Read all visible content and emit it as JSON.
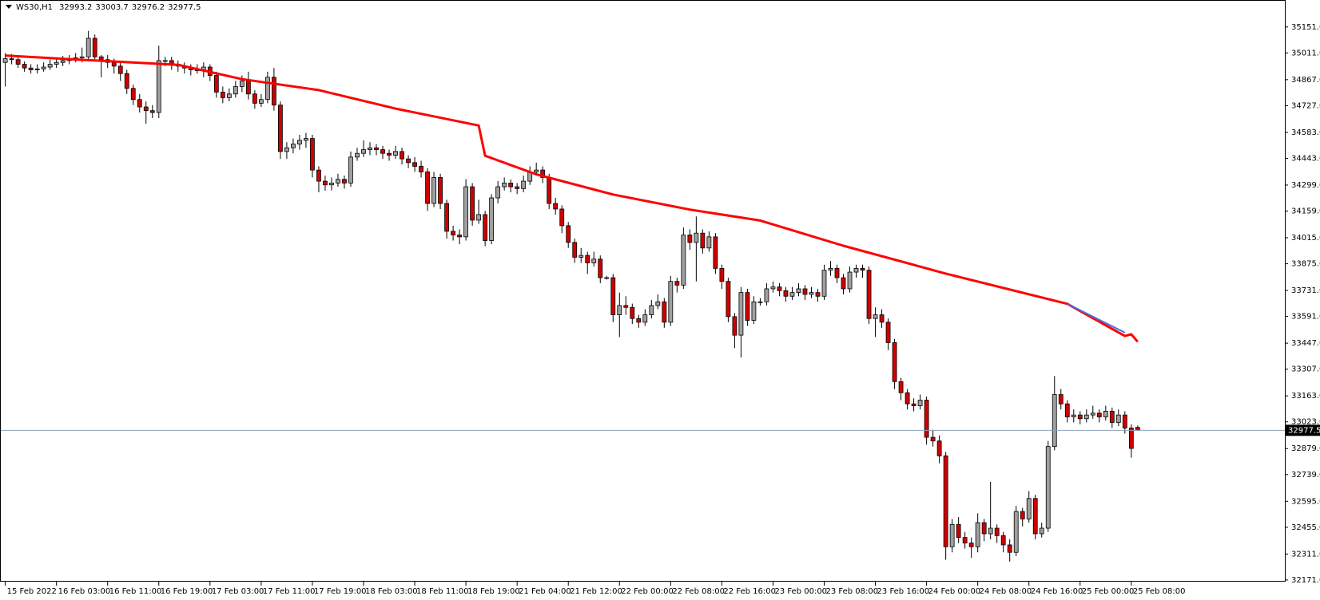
{
  "chart_data": {
    "type": "candlestick",
    "header": {
      "symbol": "WS30,H1",
      "quote": [
        32993.2,
        33003.7,
        32976.2,
        32977.5
      ]
    },
    "xlim": [
      -0.7,
      200
    ],
    "ylim": [
      32162,
      35292
    ],
    "xticks": [
      {
        "value": 0,
        "label": "15 Feb 2022"
      },
      {
        "value": 8,
        "label": "16 Feb 03:00"
      },
      {
        "value": 16,
        "label": "16 Feb 11:00"
      },
      {
        "value": 24,
        "label": "16 Feb 19:00"
      },
      {
        "value": 32,
        "label": "17 Feb 03:00"
      },
      {
        "value": 40,
        "label": "17 Feb 11:00"
      },
      {
        "value": 48,
        "label": "17 Feb 19:00"
      },
      {
        "value": 56,
        "label": "18 Feb 03:00"
      },
      {
        "value": 64,
        "label": "18 Feb 11:00"
      },
      {
        "value": 72,
        "label": "18 Feb 19:00"
      },
      {
        "value": 80,
        "label": "21 Feb 04:00"
      },
      {
        "value": 88,
        "label": "21 Feb 12:00"
      },
      {
        "value": 96,
        "label": "22 Feb 00:00"
      },
      {
        "value": 104,
        "label": "22 Feb 08:00"
      },
      {
        "value": 112,
        "label": "22 Feb 16:00"
      },
      {
        "value": 120,
        "label": "23 Feb 00:00"
      },
      {
        "value": 128,
        "label": "23 Feb 08:00"
      },
      {
        "value": 136,
        "label": "23 Feb 16:00"
      },
      {
        "value": 144,
        "label": "24 Feb 00:00"
      },
      {
        "value": 152,
        "label": "24 Feb 08:00"
      },
      {
        "value": 160,
        "label": "24 Feb 16:00"
      },
      {
        "value": 168,
        "label": "25 Feb 00:00"
      },
      {
        "value": 176,
        "label": "25 Feb 08:00"
      }
    ],
    "yticks": [
      {
        "value": 35151,
        "label": "35151.0"
      },
      {
        "value": 35011,
        "label": "35011.0"
      },
      {
        "value": 34867,
        "label": "34867.0"
      },
      {
        "value": 34727,
        "label": "34727.0"
      },
      {
        "value": 34583,
        "label": "34583.0"
      },
      {
        "value": 34443,
        "label": "34443.0"
      },
      {
        "value": 34299,
        "label": "34299.0"
      },
      {
        "value": 34159,
        "label": "34159.0"
      },
      {
        "value": 34015,
        "label": "34015.0"
      },
      {
        "value": 33875,
        "label": "33875.0"
      },
      {
        "value": 33731,
        "label": "33731.0"
      },
      {
        "value": 33591,
        "label": "33591.0"
      },
      {
        "value": 33447,
        "label": "33447.0"
      },
      {
        "value": 33307,
        "label": "33307.0"
      },
      {
        "value": 33163,
        "label": "33163.0"
      },
      {
        "value": 33023,
        "label": "33023.0"
      },
      {
        "value": 32879,
        "label": "32879.0"
      },
      {
        "value": 32739,
        "label": "32739.0"
      },
      {
        "value": 32595,
        "label": "32595.0"
      },
      {
        "value": 32455,
        "label": "32455.0"
      },
      {
        "value": 32311,
        "label": "32311.0"
      },
      {
        "value": 32171,
        "label": "32171.0"
      }
    ],
    "up_color": "#a0a0a0",
    "down_color": "#d00000",
    "open": [
      34960,
      34980,
      34975,
      34950,
      34930,
      34920,
      34925,
      34935,
      34950,
      34960,
      34970,
      34975,
      34985,
      34990,
      35090,
      34990,
      34975,
      34960,
      34940,
      34900,
      34820,
      34760,
      34720,
      34700,
      34690,
      34970,
      34970,
      34950,
      34940,
      34930,
      34920,
      34920,
      34935,
      34890,
      34800,
      34770,
      34790,
      34830,
      34860,
      34790,
      34740,
      34760,
      34880,
      34730,
      34480,
      34500,
      34520,
      34540,
      34550,
      34380,
      34320,
      34300,
      34310,
      34330,
      34310,
      34450,
      34470,
      34490,
      34500,
      34490,
      34470,
      34460,
      34480,
      34440,
      34420,
      34400,
      34370,
      34200,
      34340,
      34200,
      34050,
      34030,
      34020,
      34290,
      34110,
      34140,
      34000,
      34230,
      34290,
      34310,
      34290,
      34280,
      34320,
      34370,
      34380,
      34340,
      34200,
      34170,
      34080,
      33990,
      33910,
      33920,
      33880,
      33900,
      33800,
      33800,
      33600,
      33650,
      33640,
      33580,
      33560,
      33600,
      33650,
      33670,
      33560,
      33780,
      33760,
      34030,
      33990,
      34040,
      33960,
      34020,
      33850,
      33780,
      33590,
      33490,
      33720,
      33570,
      33670,
      33670,
      33740,
      33750,
      33730,
      33700,
      33720,
      33740,
      33710,
      33720,
      33700,
      33840,
      33850,
      33800,
      33740,
      33830,
      33850,
      33840,
      33580,
      33600,
      33560,
      33450,
      33240,
      33180,
      33120,
      33110,
      33140,
      32940,
      32920,
      32840,
      32350,
      32470,
      32400,
      32370,
      32350,
      32480,
      32420,
      32450,
      32410,
      32360,
      32320,
      32540,
      32500,
      32610,
      32420,
      32450,
      32890,
      33170,
      33120,
      33050,
      33060,
      33040,
      33060,
      33070,
      33050,
      33080,
      33020,
      33060,
      32990,
      32993.2
    ],
    "high": [
      35010,
      35005,
      34990,
      34965,
      34950,
      34950,
      34960,
      34975,
      34985,
      34995,
      35000,
      35010,
      35040,
      35130,
      35110,
      35000,
      35000,
      34980,
      34960,
      34920,
      34840,
      34790,
      34750,
      34730,
      35050,
      34990,
      34990,
      34970,
      34960,
      34950,
      34950,
      34960,
      34950,
      34910,
      34830,
      34820,
      34860,
      34890,
      34910,
      34810,
      34790,
      34910,
      34930,
      34750,
      34530,
      34550,
      34570,
      34580,
      34570,
      34400,
      34350,
      34340,
      34360,
      34350,
      34480,
      34500,
      34540,
      34530,
      34520,
      34510,
      34490,
      34510,
      34500,
      34460,
      34450,
      34430,
      34390,
      34370,
      34360,
      34220,
      34080,
      34060,
      34330,
      34310,
      34220,
      34160,
      34250,
      34320,
      34340,
      34330,
      34310,
      34350,
      34400,
      34420,
      34400,
      34360,
      34230,
      34190,
      34100,
      34010,
      33960,
      33940,
      33940,
      33920,
      33810,
      33820,
      33720,
      33700,
      33660,
      33600,
      33630,
      33680,
      33710,
      33690,
      33810,
      33800,
      34070,
      34060,
      34130,
      34060,
      34050,
      34040,
      33870,
      33800,
      33610,
      33750,
      33740,
      33700,
      33690,
      33770,
      33780,
      33770,
      33750,
      33750,
      33770,
      33760,
      33750,
      33740,
      33870,
      33890,
      33870,
      33820,
      33860,
      33870,
      33870,
      33860,
      33640,
      33630,
      33580,
      33470,
      33260,
      33200,
      33150,
      33170,
      33160,
      32980,
      32950,
      32860,
      32500,
      32510,
      32430,
      32400,
      32530,
      32500,
      32700,
      32470,
      32430,
      32390,
      32570,
      32560,
      32650,
      32630,
      32480,
      32920,
      33270,
      33200,
      33140,
      33090,
      33080,
      33090,
      33110,
      33090,
      33110,
      33100,
      33090,
      33080,
      33010,
      33003.7
    ],
    "low": [
      34830,
      34950,
      34930,
      34910,
      34900,
      34900,
      34910,
      34920,
      34930,
      34940,
      34950,
      34960,
      34960,
      34970,
      34970,
      34880,
      34930,
      34900,
      34860,
      34790,
      34730,
      34690,
      34630,
      34660,
      34660,
      34940,
      34920,
      34910,
      34900,
      34890,
      34900,
      34880,
      34860,
      34770,
      34740,
      34750,
      34770,
      34800,
      34760,
      34710,
      34720,
      34740,
      34700,
      34440,
      34440,
      34470,
      34490,
      34500,
      34340,
      34260,
      34270,
      34270,
      34290,
      34280,
      34290,
      34430,
      34450,
      34460,
      34460,
      34440,
      34430,
      34440,
      34410,
      34390,
      34370,
      34340,
      34160,
      34180,
      34170,
      34010,
      34000,
      33980,
      34000,
      34080,
      34090,
      33970,
      33980,
      34200,
      34270,
      34260,
      34250,
      34260,
      34300,
      34350,
      34310,
      34170,
      34140,
      34040,
      33960,
      33880,
      33880,
      33820,
      33860,
      33770,
      33790,
      33560,
      33480,
      33600,
      33550,
      33530,
      33540,
      33580,
      33630,
      33530,
      33540,
      33720,
      33740,
      33950,
      33780,
      33930,
      33940,
      33820,
      33740,
      33560,
      33420,
      33370,
      33540,
      33550,
      33650,
      33650,
      33720,
      33700,
      33670,
      33680,
      33700,
      33680,
      33690,
      33670,
      33680,
      33810,
      33770,
      33710,
      33720,
      33800,
      33800,
      33550,
      33480,
      33530,
      33410,
      33200,
      33140,
      33090,
      33080,
      33090,
      32900,
      32890,
      32800,
      32280,
      32320,
      32370,
      32340,
      32290,
      32320,
      32380,
      32390,
      32370,
      32320,
      32270,
      32300,
      32460,
      32480,
      32390,
      32400,
      32430,
      32870,
      33090,
      33020,
      33020,
      33010,
      33020,
      33040,
      33020,
      33030,
      32990,
      33000,
      32960,
      32830,
      32976.2
    ],
    "close": [
      34980,
      34975,
      34950,
      34930,
      34920,
      34925,
      34935,
      34950,
      34960,
      34970,
      34975,
      34985,
      34990,
      35090,
      34990,
      34975,
      34960,
      34940,
      34900,
      34820,
      34760,
      34720,
      34700,
      34690,
      34970,
      34970,
      34950,
      34940,
      34930,
      34920,
      34920,
      34935,
      34890,
      34800,
      34770,
      34790,
      34830,
      34860,
      34790,
      34740,
      34760,
      34880,
      34730,
      34480,
      34500,
      34520,
      34540,
      34550,
      34380,
      34320,
      34300,
      34310,
      34330,
      34310,
      34450,
      34470,
      34490,
      34500,
      34490,
      34470,
      34460,
      34480,
      34440,
      34420,
      34400,
      34370,
      34200,
      34340,
      34200,
      34050,
      34030,
      34020,
      34290,
      34110,
      34140,
      34000,
      34230,
      34290,
      34310,
      34290,
      34280,
      34320,
      34370,
      34380,
      34340,
      34200,
      34170,
      34080,
      33990,
      33910,
      33920,
      33880,
      33900,
      33800,
      33800,
      33600,
      33650,
      33640,
      33580,
      33560,
      33600,
      33650,
      33670,
      33560,
      33780,
      33760,
      34030,
      33990,
      34040,
      33960,
      34020,
      33850,
      33780,
      33590,
      33490,
      33720,
      33570,
      33670,
      33670,
      33740,
      33750,
      33730,
      33700,
      33720,
      33740,
      33710,
      33720,
      33700,
      33840,
      33850,
      33800,
      33740,
      33830,
      33850,
      33840,
      33580,
      33600,
      33560,
      33450,
      33240,
      33180,
      33120,
      33110,
      33140,
      32940,
      32920,
      32840,
      32350,
      32470,
      32400,
      32370,
      32350,
      32480,
      32420,
      32450,
      32410,
      32360,
      32320,
      32540,
      32500,
      32610,
      32420,
      32450,
      32890,
      33170,
      33120,
      33050,
      33060,
      33040,
      33060,
      33070,
      33050,
      33080,
      33020,
      33060,
      32990,
      32880,
      32977.5
    ],
    "lines": [
      {
        "color": "#ff0000",
        "x": [
          0,
          12,
          27,
          37,
          49,
          61,
          74,
          75,
          83,
          95,
          107,
          118,
          131,
          147,
          166,
          175,
          176,
          177
        ],
        "values": [
          34997,
          34974,
          34947,
          34870,
          34811,
          34711,
          34620,
          34457,
          34357,
          34248,
          34167,
          34108,
          33972,
          33822,
          33659,
          33486,
          33495,
          33455
        ]
      },
      {
        "color": "#4a6fe3",
        "x": [
          166,
          175
        ],
        "values": [
          33659,
          33504
        ]
      }
    ],
    "current_price": {
      "value": 32977.5,
      "label": "32977.5",
      "color": "#8fa3b8"
    }
  }
}
